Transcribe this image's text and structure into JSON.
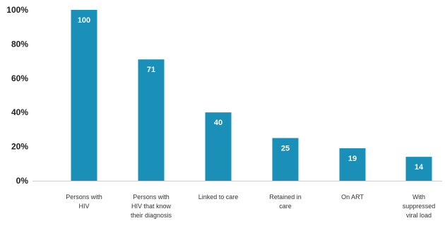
{
  "chart_data": {
    "type": "bar",
    "title": "",
    "xlabel": "",
    "ylabel": "",
    "ylim": [
      0,
      100
    ],
    "yticks": [
      "0%",
      "20%",
      "40%",
      "60%",
      "80%",
      "100%"
    ],
    "categories": [
      [
        "Persons with",
        "HIV"
      ],
      [
        "Persons with",
        "HIV that know",
        "their diagnosis"
      ],
      [
        "Linked to care"
      ],
      [
        "Retained in",
        "care"
      ],
      [
        "On ART"
      ],
      [
        "With",
        "suppressed",
        "viral load"
      ]
    ],
    "values": [
      100,
      71,
      40,
      25,
      19,
      14
    ],
    "data_labels": [
      "100",
      "71",
      "40",
      "25",
      "19",
      "14"
    ],
    "bar_color": "#1a8fb8",
    "grid": false,
    "legend": "none"
  }
}
